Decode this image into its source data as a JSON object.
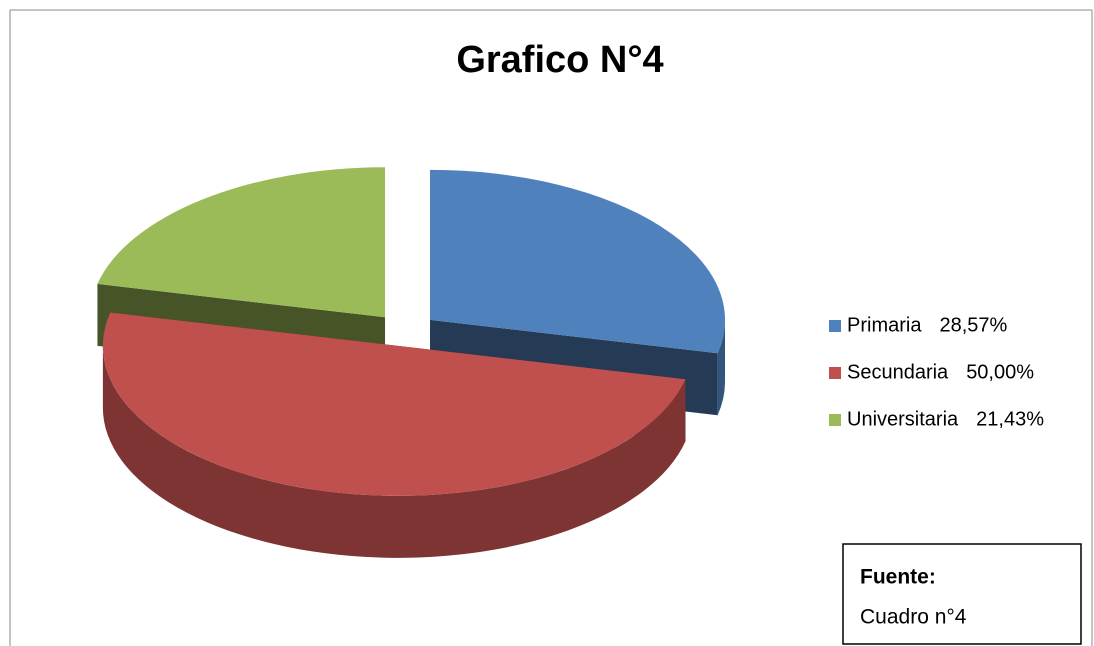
{
  "chart_data": {
    "type": "pie3d",
    "title": "Grafico N°4",
    "categories": [
      "Primaria",
      "Secundaria",
      "Universitaria"
    ],
    "values": [
      28.57,
      50.0,
      21.43
    ],
    "value_labels": [
      "28,57%",
      "50,00%",
      "21,43%"
    ],
    "colors": [
      "#4f81bd",
      "#c0504d",
      "#9bbb59"
    ],
    "legend": "right",
    "source_title": "Fuente:",
    "source": "Cuadro n°4"
  }
}
